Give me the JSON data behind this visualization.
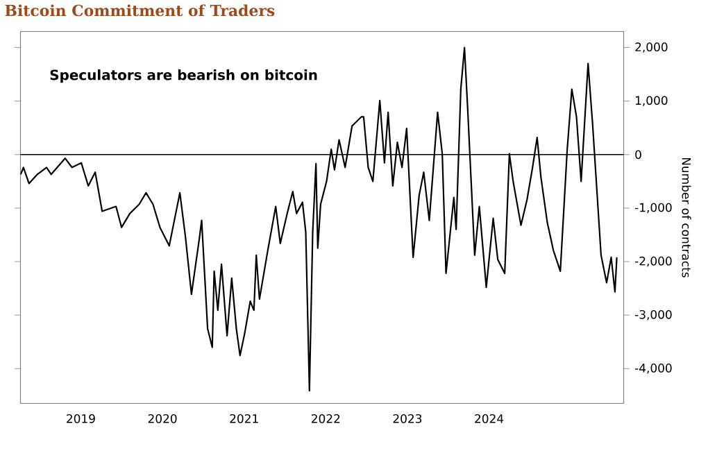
{
  "chart_data": {
    "type": "line",
    "title": "Bitcoin Commitment of Traders",
    "ylabel": "Number of contracts",
    "annotations": [
      "Speculators are bearish on bitcoin"
    ],
    "x": [
      2018.263,
      2018.297,
      2018.365,
      2018.467,
      2018.58,
      2018.637,
      2018.807,
      2018.892,
      2019.006,
      2019.091,
      2019.176,
      2019.261,
      2019.431,
      2019.499,
      2019.601,
      2019.714,
      2019.799,
      2019.884,
      2019.969,
      2020.083,
      2020.213,
      2020.281,
      2020.355,
      2020.451,
      2020.48,
      2020.553,
      2020.61,
      2020.633,
      2020.678,
      2020.723,
      2020.791,
      2020.848,
      2020.905,
      2020.95,
      2021.007,
      2021.075,
      2021.12,
      2021.149,
      2021.188,
      2021.29,
      2021.387,
      2021.443,
      2021.528,
      2021.596,
      2021.642,
      2021.715,
      2021.755,
      2021.8,
      2021.84,
      2021.88,
      2021.902,
      2021.937,
      2022.01,
      2022.067,
      2022.107,
      2022.163,
      2022.237,
      2022.322,
      2022.435,
      2022.464,
      2022.52,
      2022.577,
      2022.662,
      2022.719,
      2022.764,
      2022.821,
      2022.877,
      2022.934,
      2022.991,
      2023.07,
      2023.144,
      2023.2,
      2023.268,
      2023.37,
      2023.427,
      2023.473,
      2023.569,
      2023.597,
      2023.654,
      2023.699,
      2023.739,
      2023.824,
      2023.881,
      2023.966,
      2024.051,
      2024.107,
      2024.192,
      2024.249,
      2024.295,
      2024.391,
      2024.465,
      2024.533,
      2024.589,
      2024.635,
      2024.714,
      2024.788,
      2024.873,
      2024.958,
      2025.014,
      2025.071,
      2025.128,
      2025.213,
      2025.27,
      2025.372,
      2025.44,
      2025.496,
      2025.542,
      2025.565
    ],
    "values": [
      -370,
      -240,
      -540,
      -370,
      -240,
      -370,
      -70,
      -240,
      -155,
      -585,
      -330,
      -1060,
      -970,
      -1360,
      -1100,
      -930,
      -715,
      -930,
      -1360,
      -1705,
      -715,
      -1530,
      -2610,
      -1575,
      -1230,
      -3255,
      -3600,
      -2180,
      -2910,
      -2050,
      -3385,
      -2310,
      -3255,
      -3755,
      -3340,
      -2740,
      -2910,
      -1880,
      -2700,
      -1790,
      -970,
      -1660,
      -1100,
      -690,
      -1100,
      -890,
      -1450,
      -4415,
      -1450,
      -170,
      -1750,
      -930,
      -500,
      100,
      -285,
      275,
      -240,
      535,
      705,
      705,
      -240,
      -500,
      1010,
      -155,
      790,
      -585,
      230,
      -240,
      490,
      -1920,
      -760,
      -330,
      -1230,
      790,
      15,
      -2220,
      -800,
      -1400,
      1220,
      2000,
      835,
      -1880,
      -970,
      -2480,
      -1190,
      -1960,
      -2220,
      15,
      -500,
      -1320,
      -845,
      -240,
      320,
      -415,
      -1275,
      -1790,
      -2180,
      105,
      1220,
      705,
      -500,
      1700,
      535,
      -1880,
      -2395,
      -1920,
      -2565,
      -1920
    ],
    "color": "#000000",
    "xlim": [
      2018.26,
      2025.65
    ],
    "xticks": [
      2019,
      2020,
      2021,
      2022,
      2023,
      2024
    ],
    "ylim": [
      -4650,
      2300
    ],
    "yticks": [
      {
        "value": 2000,
        "label": "2,000"
      },
      {
        "value": 1000,
        "label": "1,000"
      },
      0,
      {
        "value": -1000,
        "label": "-1,000"
      },
      {
        "value": -2000,
        "label": "-2,000"
      },
      {
        "value": -3000,
        "label": "-3,000"
      },
      {
        "value": -4000,
        "label": "-4,000"
      }
    ],
    "ref_lines": [
      {
        "axis": "y",
        "value": 0,
        "color": "#000000"
      }
    ]
  }
}
